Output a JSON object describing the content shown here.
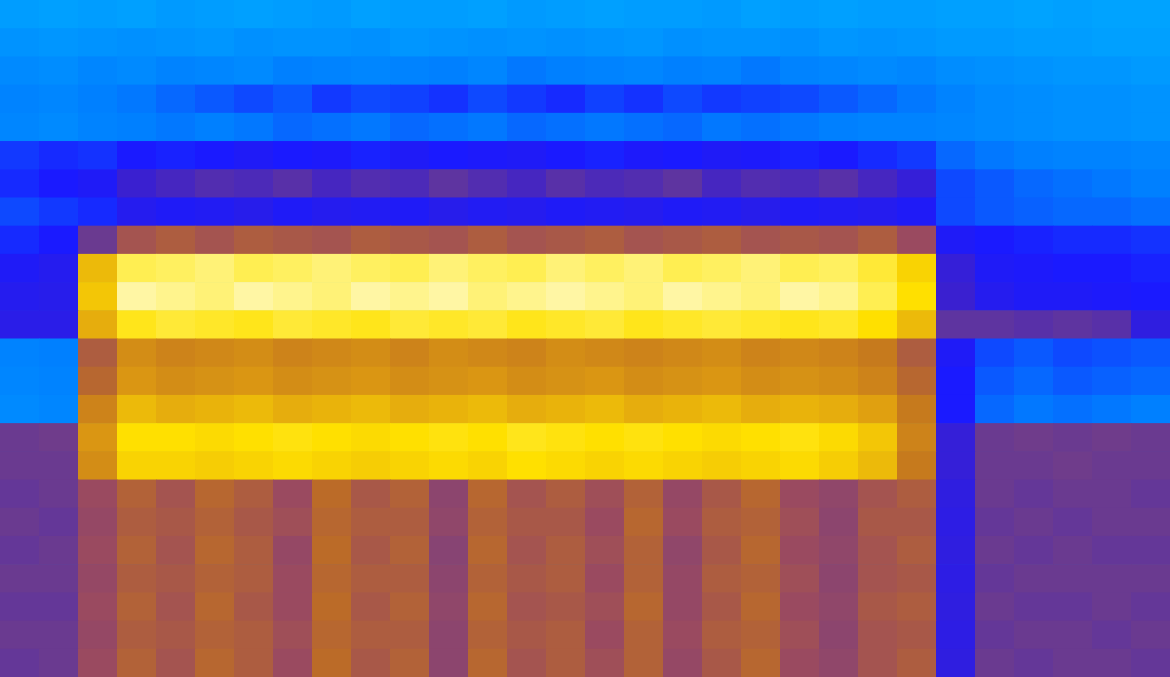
{
  "chart_data": {
    "type": "heatmap",
    "tick_labels": false,
    "zlim": [
      0,
      100
    ],
    "cells": [
      [
        6,
        5,
        6,
        5,
        7,
        6,
        5,
        6,
        7,
        5,
        6,
        6,
        5,
        7,
        6,
        5,
        6,
        6,
        7,
        5,
        6,
        5,
        6,
        6,
        5,
        5,
        4,
        5,
        4,
        4
      ],
      [
        9,
        8,
        9,
        10,
        9,
        8,
        10,
        9,
        9,
        10,
        8,
        9,
        10,
        9,
        10,
        9,
        8,
        10,
        9,
        9,
        10,
        8,
        9,
        8,
        7,
        7,
        6,
        6,
        5,
        5
      ],
      [
        12,
        11,
        13,
        12,
        14,
        13,
        12,
        15,
        14,
        13,
        14,
        15,
        13,
        16,
        15,
        14,
        13,
        15,
        14,
        16,
        14,
        13,
        12,
        13,
        11,
        10,
        9,
        8,
        8,
        7
      ],
      [
        14,
        13,
        15,
        16,
        18,
        20,
        22,
        20,
        24,
        22,
        23,
        25,
        22,
        24,
        26,
        23,
        25,
        22,
        24,
        23,
        22,
        20,
        18,
        16,
        14,
        12,
        11,
        10,
        10,
        9
      ],
      [
        13,
        12,
        14,
        15,
        16,
        15,
        16,
        18,
        17,
        16,
        18,
        17,
        16,
        18,
        17,
        16,
        17,
        18,
        16,
        17,
        16,
        15,
        14,
        14,
        13,
        12,
        11,
        10,
        10,
        9
      ],
      [
        24,
        26,
        25,
        28,
        27,
        28,
        30,
        28,
        29,
        27,
        30,
        28,
        29,
        30,
        28,
        27,
        29,
        28,
        30,
        29,
        27,
        28,
        26,
        24,
        18,
        16,
        15,
        14,
        14,
        13
      ],
      [
        26,
        28,
        30,
        40,
        42,
        44,
        43,
        45,
        42,
        44,
        43,
        46,
        44,
        42,
        45,
        43,
        44,
        46,
        42,
        44,
        43,
        45,
        42,
        38,
        22,
        20,
        18,
        17,
        16,
        15
      ],
      [
        22,
        24,
        26,
        32,
        30,
        31,
        33,
        30,
        32,
        31,
        30,
        33,
        31,
        32,
        30,
        31,
        32,
        30,
        31,
        33,
        30,
        31,
        32,
        30,
        22,
        20,
        19,
        18,
        18,
        17
      ],
      [
        26,
        28,
        48,
        60,
        62,
        60,
        62,
        61,
        60,
        62,
        61,
        60,
        62,
        60,
        61,
        62,
        60,
        61,
        62,
        60,
        61,
        60,
        62,
        58,
        30,
        28,
        27,
        26,
        26,
        25
      ],
      [
        30,
        32,
        80,
        92,
        93,
        94,
        92,
        93,
        94,
        93,
        92,
        94,
        93,
        92,
        94,
        93,
        94,
        92,
        93,
        94,
        92,
        93,
        90,
        84,
        38,
        30,
        29,
        28,
        28,
        27
      ],
      [
        32,
        33,
        82,
        96,
        95,
        94,
        96,
        95,
        94,
        96,
        95,
        96,
        94,
        95,
        96,
        95,
        94,
        96,
        95,
        94,
        96,
        95,
        92,
        86,
        40,
        32,
        30,
        30,
        29,
        28
      ],
      [
        34,
        34,
        78,
        88,
        90,
        89,
        88,
        90,
        89,
        88,
        90,
        89,
        90,
        88,
        89,
        90,
        88,
        89,
        90,
        89,
        88,
        89,
        86,
        80,
        46,
        46,
        45,
        46,
        45,
        36
      ],
      [
        14,
        15,
        62,
        72,
        70,
        71,
        72,
        70,
        71,
        72,
        70,
        72,
        71,
        70,
        72,
        71,
        70,
        71,
        72,
        70,
        71,
        70,
        68,
        62,
        30,
        22,
        20,
        22,
        21,
        20
      ],
      [
        13,
        14,
        64,
        74,
        72,
        73,
        74,
        72,
        73,
        74,
        72,
        73,
        74,
        72,
        73,
        74,
        72,
        73,
        74,
        72,
        73,
        72,
        70,
        64,
        28,
        20,
        18,
        20,
        19,
        18
      ],
      [
        12,
        13,
        70,
        80,
        78,
        79,
        80,
        78,
        79,
        80,
        78,
        79,
        80,
        78,
        79,
        80,
        78,
        79,
        80,
        78,
        79,
        78,
        76,
        68,
        28,
        18,
        16,
        17,
        16,
        15
      ],
      [
        48,
        49,
        74,
        86,
        86,
        85,
        86,
        87,
        86,
        85,
        86,
        87,
        86,
        88,
        87,
        86,
        87,
        86,
        85,
        86,
        87,
        85,
        82,
        70,
        38,
        48,
        49,
        48,
        49,
        48
      ],
      [
        48,
        48,
        72,
        84,
        84,
        83,
        84,
        85,
        84,
        83,
        84,
        85,
        84,
        86,
        85,
        84,
        85,
        84,
        83,
        84,
        85,
        83,
        80,
        68,
        38,
        48,
        48,
        49,
        48,
        48
      ],
      [
        47,
        48,
        58,
        63,
        60,
        64,
        62,
        58,
        65,
        61,
        63,
        55,
        64,
        60,
        62,
        59,
        63,
        57,
        61,
        64,
        58,
        56,
        60,
        62,
        36,
        48,
        47,
        48,
        48,
        47
      ],
      [
        48,
        47,
        57,
        62,
        61,
        63,
        61,
        59,
        64,
        62,
        62,
        56,
        63,
        61,
        61,
        58,
        64,
        58,
        62,
        63,
        59,
        55,
        61,
        61,
        35,
        47,
        48,
        47,
        48,
        48
      ],
      [
        47,
        48,
        58,
        63,
        60,
        64,
        62,
        57,
        65,
        61,
        63,
        54,
        64,
        60,
        62,
        59,
        63,
        56,
        61,
        64,
        58,
        56,
        60,
        62,
        36,
        48,
        47,
        48,
        47,
        47
      ],
      [
        48,
        48,
        57,
        62,
        61,
        63,
        62,
        58,
        64,
        62,
        62,
        55,
        63,
        61,
        62,
        58,
        63,
        57,
        62,
        63,
        59,
        55,
        60,
        61,
        35,
        47,
        48,
        48,
        48,
        48
      ],
      [
        47,
        47,
        58,
        63,
        60,
        64,
        61,
        58,
        65,
        61,
        63,
        56,
        64,
        60,
        61,
        59,
        64,
        57,
        61,
        64,
        58,
        56,
        61,
        62,
        36,
        48,
        47,
        47,
        48,
        47
      ],
      [
        48,
        48,
        57,
        62,
        61,
        63,
        62,
        59,
        64,
        62,
        62,
        55,
        63,
        61,
        62,
        58,
        63,
        58,
        62,
        63,
        59,
        55,
        60,
        61,
        35,
        47,
        48,
        48,
        47,
        48
      ],
      [
        47,
        48,
        58,
        63,
        60,
        64,
        62,
        58,
        65,
        61,
        63,
        55,
        64,
        60,
        62,
        59,
        63,
        57,
        61,
        64,
        58,
        56,
        60,
        62,
        36,
        48,
        47,
        48,
        48,
        47
      ]
    ]
  }
}
